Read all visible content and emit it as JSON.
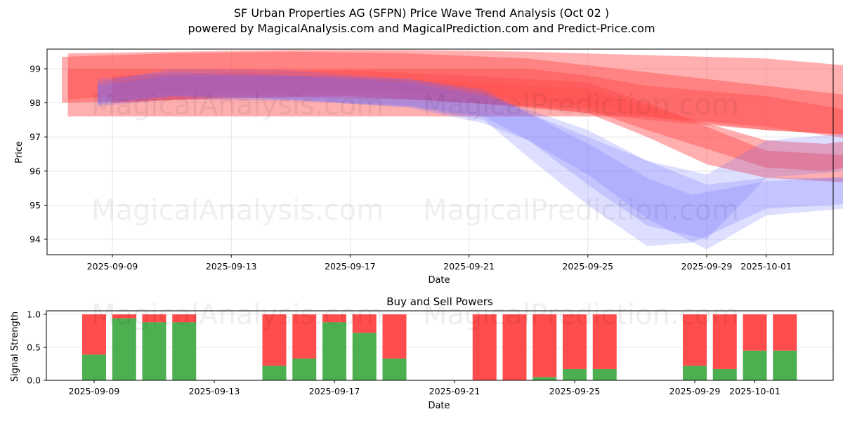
{
  "title": "SF Urban Properties AG (SFPN) Price Wave Trend Analysis (Oct 02 )",
  "subtitle": "powered by MagicalAnalysis.com and MagicalPrediction.com and Predict-Price.com",
  "watermarks": [
    "MagicalAnalysis.com",
    "MagicalPrediction.com"
  ],
  "colors": {
    "red_band": "#ff4d4d",
    "blue_band": "#6b6bff",
    "buy": "#4caf50",
    "sell": "#ff4c4c",
    "grid": "#e0e0e0"
  },
  "chart_data": [
    {
      "type": "area",
      "title": "",
      "xlabel": "Date",
      "ylabel": "Price",
      "x_start": "2025-09-07",
      "x_end": "2025-10-03",
      "xlim": [
        "2025-09-06.8",
        "2025-10-03.1"
      ],
      "ylim": [
        93.55,
        99.6
      ],
      "yticks": [
        94,
        95,
        96,
        97,
        98,
        99
      ],
      "xticks": [
        "2025-09-09",
        "2025-09-13",
        "2025-09-17",
        "2025-09-21",
        "2025-09-25",
        "2025-09-29",
        "2025-10-01"
      ],
      "grid": true,
      "series": [
        {
          "name": "red-wave-1",
          "color": "red",
          "x_days": [
            0.5,
            4,
            8,
            12,
            16,
            20,
            24,
            28,
            32.5
          ],
          "upper": [
            99.45,
            99.5,
            99.55,
            99.55,
            99.5,
            99.4,
            99.3,
            99.0,
            98.55
          ],
          "lower": [
            97.6,
            97.6,
            97.6,
            97.6,
            97.6,
            97.6,
            97.3,
            96.8,
            96.5
          ]
        },
        {
          "name": "red-wave-2",
          "color": "red",
          "x_days": [
            0.3,
            4,
            8,
            12,
            16,
            20,
            24,
            28,
            32.8
          ],
          "upper": [
            99.35,
            99.45,
            99.5,
            99.45,
            99.3,
            98.9,
            98.5,
            98.1,
            98.1
          ],
          "lower": [
            98.0,
            98.1,
            98.15,
            98.1,
            97.9,
            97.5,
            97.2,
            97.0,
            96.95
          ]
        },
        {
          "name": "red-wave-3",
          "color": "red",
          "x_days": [
            0.5,
            4,
            8,
            12,
            16,
            18,
            20,
            24,
            28,
            32.5
          ],
          "upper": [
            99.0,
            99.0,
            99.0,
            99.0,
            99.0,
            98.8,
            98.5,
            98.2,
            97.6,
            97.2
          ],
          "lower": [
            98.1,
            98.3,
            98.35,
            98.3,
            98.1,
            97.9,
            97.6,
            97.2,
            97.0,
            96.7
          ]
        },
        {
          "name": "red-wave-4",
          "color": "red",
          "x_days": [
            2,
            6,
            10,
            14,
            18,
            20,
            22,
            24,
            28,
            32.2
          ],
          "upper": [
            98.8,
            98.9,
            98.95,
            98.8,
            98.6,
            98.0,
            97.3,
            96.6,
            96.4,
            96.3
          ],
          "lower": [
            98.0,
            98.2,
            98.2,
            98.0,
            97.7,
            97.0,
            96.2,
            95.8,
            95.6,
            95.5
          ]
        },
        {
          "name": "red-wave-5",
          "color": "red",
          "x_days": [
            2,
            6,
            10,
            14,
            18,
            20,
            24,
            26,
            28,
            31.5
          ],
          "upper": [
            98.7,
            98.8,
            98.75,
            98.6,
            98.4,
            97.9,
            96.9,
            96.8,
            97.0,
            97.7
          ],
          "lower": [
            98.0,
            98.15,
            98.2,
            98.0,
            97.8,
            97.2,
            96.1,
            96.0,
            96.3,
            95.9
          ]
        },
        {
          "name": "blue-wave-1",
          "color": "blue",
          "x_days": [
            1.5,
            4,
            8,
            12,
            14.5,
            16,
            18,
            20,
            21.5,
            24,
            28,
            32
          ],
          "upper": [
            98.6,
            99.0,
            98.95,
            98.7,
            98.4,
            97.7,
            96.8,
            95.8,
            95.3,
            95.7,
            95.9,
            96.0
          ],
          "lower": [
            98.0,
            98.2,
            98.1,
            97.9,
            97.5,
            96.4,
            95.0,
            93.8,
            93.9,
            94.9,
            95.1,
            95.3
          ]
        },
        {
          "name": "blue-wave-2",
          "color": "blue",
          "x_days": [
            1.5,
            4,
            8,
            12,
            14.5,
            16,
            18,
            20,
            22,
            24,
            28,
            32
          ],
          "upper": [
            98.7,
            98.9,
            98.8,
            98.6,
            98.2,
            97.8,
            97.2,
            96.3,
            95.6,
            95.8,
            95.8,
            96.6
          ],
          "lower": [
            97.95,
            98.2,
            98.1,
            97.85,
            97.4,
            96.9,
            95.9,
            94.6,
            93.7,
            94.7,
            95.0,
            95.5
          ]
        },
        {
          "name": "blue-wave-3",
          "color": "blue",
          "x_days": [
            1.5,
            4,
            8,
            12,
            14.5,
            16,
            18,
            20,
            22,
            24,
            28,
            32
          ],
          "upper": [
            98.5,
            98.8,
            98.8,
            98.7,
            98.3,
            97.7,
            97.0,
            96.3,
            95.9,
            96.9,
            97.2,
            97.7
          ],
          "lower": [
            97.9,
            98.1,
            98.05,
            97.9,
            97.6,
            96.9,
            95.6,
            94.4,
            94.0,
            95.8,
            96.1,
            96.5
          ]
        }
      ]
    },
    {
      "type": "bar",
      "title": "Buy and Sell Powers",
      "xlabel": "Date",
      "ylabel": "Signal Strength",
      "ylim": [
        0,
        1.05
      ],
      "yticks": [
        "0.0",
        "0.5",
        "1.0"
      ],
      "xticks": [
        "2025-09-09",
        "2025-09-13",
        "2025-09-17",
        "2025-09-21",
        "2025-09-25",
        "2025-09-29",
        "2025-10-01"
      ],
      "grid": true,
      "categories": [
        "2025-09-09",
        "2025-09-10",
        "2025-09-11",
        "2025-09-12",
        "2025-09-15",
        "2025-09-16",
        "2025-09-17",
        "2025-09-18",
        "2025-09-19",
        "2025-09-22",
        "2025-09-23",
        "2025-09-24",
        "2025-09-25",
        "2025-09-26",
        "2025-09-29",
        "2025-09-30",
        "2025-10-01",
        "2025-10-02"
      ],
      "series": [
        {
          "name": "Buy",
          "color": "green",
          "values": [
            0.39,
            0.94,
            0.88,
            0.88,
            0.22,
            0.33,
            0.88,
            0.72,
            0.33,
            0.0,
            0.0,
            0.05,
            0.17,
            0.17,
            0.22,
            0.17,
            0.45,
            0.45
          ]
        },
        {
          "name": "Sell",
          "color": "red",
          "values": [
            0.61,
            0.06,
            0.12,
            0.12,
            0.78,
            0.67,
            0.12,
            0.28,
            0.67,
            1.0,
            1.0,
            0.95,
            0.83,
            0.83,
            0.78,
            0.83,
            0.55,
            0.55
          ]
        }
      ]
    }
  ]
}
